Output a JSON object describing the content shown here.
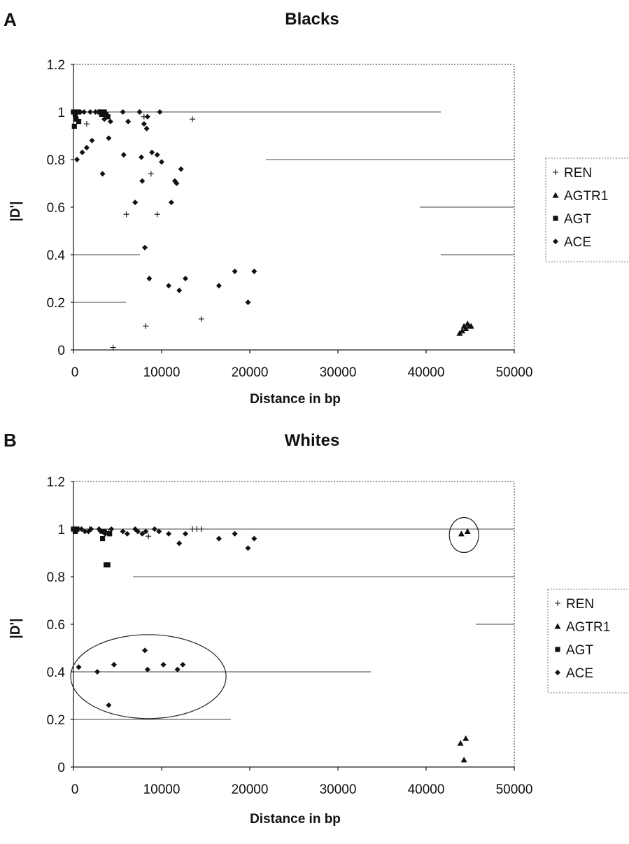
{
  "chart_data": [
    {
      "panel": "A",
      "type": "scatter",
      "title": "Blacks",
      "xlabel": "Distance in bp",
      "ylabel": "|D'|",
      "xlim": [
        0,
        50000
      ],
      "ylim": [
        0,
        1.2
      ],
      "x_ticks": [
        "0",
        "10000",
        "20000",
        "30000",
        "40000",
        "50000"
      ],
      "y_ticks": [
        "0",
        "0.2",
        "0.4",
        "0.6",
        "0.8",
        "1",
        "1.2"
      ],
      "grid": "horizontal",
      "legend": "right",
      "series": [
        {
          "name": "REN",
          "marker": "plus",
          "points": [
            [
              1500,
              0.95
            ],
            [
              4500,
              0.01
            ],
            [
              6000,
              0.57
            ],
            [
              8000,
              0.98
            ],
            [
              8200,
              0.1
            ],
            [
              8800,
              0.74
            ],
            [
              9500,
              0.57
            ],
            [
              13500,
              0.97
            ],
            [
              14500,
              0.13
            ]
          ]
        },
        {
          "name": "AGTR1",
          "marker": "triangle",
          "points": [
            [
              43800,
              0.07
            ],
            [
              44100,
              0.08
            ],
            [
              44300,
              0.1
            ],
            [
              44500,
              0.09
            ],
            [
              44700,
              0.11
            ],
            [
              44900,
              0.1
            ],
            [
              45100,
              0.1
            ]
          ]
        },
        {
          "name": "AGT",
          "marker": "square",
          "points": [
            [
              0,
              1.0
            ],
            [
              100,
              0.94
            ],
            [
              200,
              0.99
            ],
            [
              300,
              0.97
            ],
            [
              500,
              1.0
            ],
            [
              600,
              0.96
            ],
            [
              3000,
              1.0
            ],
            [
              3200,
              0.99
            ],
            [
              3500,
              1.0
            ],
            [
              3700,
              0.99
            ],
            [
              3900,
              0.98
            ]
          ]
        },
        {
          "name": "ACE",
          "marker": "diamond",
          "points": [
            [
              400,
              0.8
            ],
            [
              800,
              1.0
            ],
            [
              1000,
              0.83
            ],
            [
              1200,
              1.0
            ],
            [
              1500,
              0.85
            ],
            [
              1900,
              1.0
            ],
            [
              2100,
              0.88
            ],
            [
              2500,
              1.0
            ],
            [
              3000,
              1.0
            ],
            [
              3300,
              0.74
            ],
            [
              3500,
              0.97
            ],
            [
              4000,
              0.89
            ],
            [
              4200,
              0.96
            ],
            [
              5600,
              1.0
            ],
            [
              5700,
              0.82
            ],
            [
              6200,
              0.96
            ],
            [
              7000,
              0.62
            ],
            [
              7500,
              1.0
            ],
            [
              7700,
              0.81
            ],
            [
              7800,
              0.71
            ],
            [
              8000,
              0.95
            ],
            [
              8100,
              0.43
            ],
            [
              8300,
              0.93
            ],
            [
              8400,
              0.98
            ],
            [
              8600,
              0.3
            ],
            [
              8900,
              0.83
            ],
            [
              9500,
              0.82
            ],
            [
              9800,
              1.0
            ],
            [
              10000,
              0.79
            ],
            [
              10800,
              0.27
            ],
            [
              11100,
              0.62
            ],
            [
              11500,
              0.71
            ],
            [
              11700,
              0.7
            ],
            [
              12000,
              0.25
            ],
            [
              12200,
              0.76
            ],
            [
              12700,
              0.3
            ],
            [
              16500,
              0.27
            ],
            [
              18300,
              0.33
            ],
            [
              19800,
              0.2
            ],
            [
              20500,
              0.33
            ]
          ]
        }
      ]
    },
    {
      "panel": "B",
      "type": "scatter",
      "title": "Whites",
      "xlabel": "Distance in bp",
      "ylabel": "|D'|",
      "xlim": [
        0,
        50000
      ],
      "ylim": [
        0,
        1.2
      ],
      "x_ticks": [
        "0",
        "10000",
        "20000",
        "30000",
        "40000",
        "50000"
      ],
      "y_ticks": [
        "0",
        "0.2",
        "0.4",
        "0.6",
        "0.8",
        "1",
        "1.2"
      ],
      "grid": "horizontal",
      "legend": "right",
      "series": [
        {
          "name": "REN",
          "marker": "plus",
          "points": [
            [
              1800,
              1.0
            ],
            [
              4000,
              0.99
            ],
            [
              8500,
              0.97
            ],
            [
              13500,
              1.0
            ],
            [
              14000,
              1.0
            ],
            [
              14500,
              1.0
            ]
          ]
        },
        {
          "name": "AGTR1",
          "marker": "triangle",
          "points": [
            [
              43900,
              0.1
            ],
            [
              44000,
              0.98
            ],
            [
              44300,
              0.03
            ],
            [
              44500,
              0.12
            ],
            [
              44700,
              0.99
            ]
          ]
        },
        {
          "name": "AGT",
          "marker": "square",
          "points": [
            [
              0,
              1.0
            ],
            [
              200,
              0.99
            ],
            [
              400,
              1.0
            ],
            [
              3300,
              0.96
            ],
            [
              3500,
              0.99
            ],
            [
              3700,
              0.85
            ],
            [
              3900,
              0.85
            ],
            [
              4100,
              0.98
            ]
          ]
        },
        {
          "name": "ACE",
          "marker": "diamond",
          "points": [
            [
              300,
              0.99
            ],
            [
              600,
              0.42
            ],
            [
              900,
              1.0
            ],
            [
              1300,
              0.99
            ],
            [
              1700,
              0.99
            ],
            [
              2000,
              1.0
            ],
            [
              2700,
              0.4
            ],
            [
              2900,
              1.0
            ],
            [
              3100,
              0.99
            ],
            [
              3600,
              0.98
            ],
            [
              4000,
              0.26
            ],
            [
              4300,
              1.0
            ],
            [
              4600,
              0.43
            ],
            [
              5600,
              0.99
            ],
            [
              6100,
              0.98
            ],
            [
              7000,
              1.0
            ],
            [
              7300,
              0.99
            ],
            [
              7800,
              0.98
            ],
            [
              8100,
              0.49
            ],
            [
              8200,
              0.99
            ],
            [
              8400,
              0.41
            ],
            [
              9200,
              1.0
            ],
            [
              9700,
              0.99
            ],
            [
              10200,
              0.43
            ],
            [
              10800,
              0.98
            ],
            [
              11800,
              0.41
            ],
            [
              12000,
              0.94
            ],
            [
              12400,
              0.43
            ],
            [
              12700,
              0.98
            ],
            [
              16500,
              0.96
            ],
            [
              18300,
              0.98
            ],
            [
              19800,
              0.92
            ],
            [
              20500,
              0.96
            ]
          ]
        }
      ]
    }
  ]
}
